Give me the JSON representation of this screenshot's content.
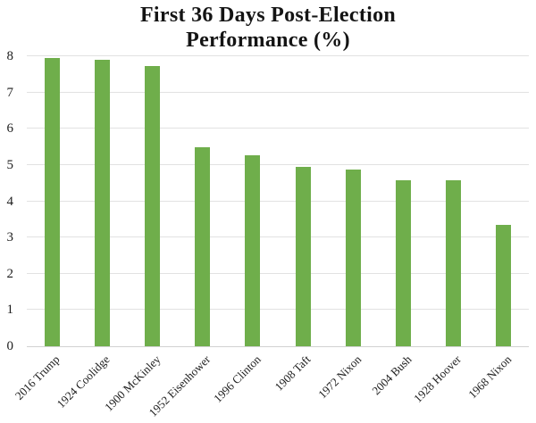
{
  "chart": {
    "title_line1": "First 36 Days Post-Election",
    "title_line2": "Performance (%)"
  },
  "chart_data": {
    "type": "bar",
    "title": "First 36 Days Post-Election Performance (%)",
    "categories": [
      "2016 Trump",
      "1924 Coolidge",
      "1900 McKinley",
      "1952 Eisenhower",
      "1996 Clinton",
      "1908 Taft",
      "1972 Nixon",
      "2004 Bush",
      "1928 Hoover",
      "1968 Nixon"
    ],
    "values": [
      7.95,
      7.9,
      7.72,
      5.5,
      5.28,
      4.95,
      4.88,
      4.57,
      4.57,
      3.35
    ],
    "xlabel": "",
    "ylabel": "",
    "ylim": [
      0,
      8
    ],
    "yticks": [
      0,
      1,
      2,
      3,
      4,
      5,
      6,
      7,
      8
    ],
    "grid": true,
    "legend": "none",
    "bar_color": "#6fae4b",
    "gridline_color": "#e2e2e2",
    "axis_line_color": "#d2d2d2",
    "text_color": "#1c1c1c"
  }
}
